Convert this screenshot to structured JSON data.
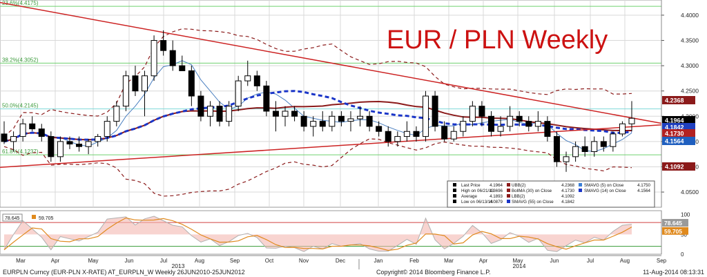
{
  "chart_data": {
    "type": "candlestick",
    "title": "EUR / PLN Weekly",
    "price_axis": {
      "ylim": [
        4.02,
        4.43
      ],
      "ticks": [
        "4.4000",
        "4.3500",
        "4.3000",
        "4.2500",
        "4.2000",
        "4.1500",
        "4.1000",
        "4.0500"
      ]
    },
    "fib_levels": [
      {
        "label": "23.6%(4.4175)",
        "value": 4.4175
      },
      {
        "label": "38.2%(4.3052)",
        "value": 4.3052
      },
      {
        "label": "50.0%(4.2145)",
        "value": 4.2145
      },
      {
        "label": "61.8%(4.1237)",
        "value": 4.1237
      }
    ],
    "price_badges": [
      {
        "text": "4.2368",
        "value": 4.2368,
        "color": "#8b1a1a"
      },
      {
        "text": "4.1964",
        "value": 4.1964,
        "color": "#000000"
      },
      {
        "text": "4.1842",
        "value": 4.1842,
        "color": "#1f3fbf"
      },
      {
        "text": "4.1730",
        "value": 4.173,
        "color": "#b22222"
      },
      {
        "text": "4.1564",
        "value": 4.1564,
        "color": "#1f5fbf"
      },
      {
        "text": "4.1092",
        "value": 4.1092,
        "color": "#8b1a1a"
      }
    ],
    "x_axis": {
      "months": [
        "Mar",
        "Apr",
        "May",
        "Jun",
        "Jul",
        "Aug",
        "Sep",
        "Oct",
        "Nov",
        "Dec",
        "Jan",
        "Feb",
        "Mar",
        "Apr",
        "May",
        "Jun",
        "Jul",
        "Aug",
        "Sep"
      ],
      "years": [
        {
          "label": "2013",
          "after_month_index": 4
        },
        {
          "label": "2014",
          "after_month_index": 14
        }
      ]
    },
    "candles": [
      [
        4.165,
        4.19,
        4.145,
        4.15
      ],
      [
        4.15,
        4.17,
        4.13,
        4.16
      ],
      [
        4.16,
        4.195,
        4.15,
        4.185
      ],
      [
        4.185,
        4.2,
        4.17,
        4.175
      ],
      [
        4.175,
        4.185,
        4.15,
        4.16
      ],
      [
        4.16,
        4.17,
        4.11,
        4.12
      ],
      [
        4.12,
        4.16,
        4.11,
        4.15
      ],
      [
        4.15,
        4.16,
        4.135,
        4.145
      ],
      [
        4.145,
        4.16,
        4.13,
        4.14
      ],
      [
        4.14,
        4.155,
        4.125,
        4.15
      ],
      [
        4.15,
        4.165,
        4.14,
        4.16
      ],
      [
        4.16,
        4.2,
        4.15,
        4.19
      ],
      [
        4.19,
        4.23,
        4.18,
        4.22
      ],
      [
        4.22,
        4.29,
        4.21,
        4.28
      ],
      [
        4.28,
        4.3,
        4.24,
        4.25
      ],
      [
        4.25,
        4.29,
        4.2,
        4.28
      ],
      [
        4.28,
        4.36,
        4.27,
        4.35
      ],
      [
        4.35,
        4.37,
        4.32,
        4.33
      ],
      [
        4.33,
        4.35,
        4.29,
        4.3
      ],
      [
        4.3,
        4.32,
        4.29,
        4.29
      ],
      [
        4.29,
        4.3,
        4.22,
        4.24
      ],
      [
        4.24,
        4.25,
        4.19,
        4.2
      ],
      [
        4.2,
        4.23,
        4.18,
        4.22
      ],
      [
        4.22,
        4.23,
        4.18,
        4.19
      ],
      [
        4.19,
        4.23,
        4.18,
        4.22
      ],
      [
        4.22,
        4.28,
        4.21,
        4.27
      ],
      [
        4.27,
        4.31,
        4.26,
        4.28
      ],
      [
        4.28,
        4.29,
        4.25,
        4.26
      ],
      [
        4.26,
        4.27,
        4.2,
        4.21
      ],
      [
        4.21,
        4.23,
        4.17,
        4.2
      ],
      [
        4.2,
        4.22,
        4.18,
        4.21
      ],
      [
        4.21,
        4.22,
        4.19,
        4.2
      ],
      [
        4.2,
        4.21,
        4.17,
        4.18
      ],
      [
        4.18,
        4.2,
        4.16,
        4.19
      ],
      [
        4.19,
        4.21,
        4.17,
        4.18
      ],
      [
        4.18,
        4.21,
        4.17,
        4.2
      ],
      [
        4.2,
        4.21,
        4.18,
        4.19
      ],
      [
        4.19,
        4.21,
        4.17,
        4.195
      ],
      [
        4.195,
        4.22,
        4.18,
        4.2
      ],
      [
        4.2,
        4.21,
        4.17,
        4.18
      ],
      [
        4.18,
        4.19,
        4.16,
        4.17
      ],
      [
        4.17,
        4.18,
        4.14,
        4.15
      ],
      [
        4.15,
        4.17,
        4.14,
        4.16
      ],
      [
        4.16,
        4.19,
        4.15,
        4.17
      ],
      [
        4.17,
        4.18,
        4.15,
        4.16
      ],
      [
        4.16,
        4.25,
        4.15,
        4.24
      ],
      [
        4.24,
        4.25,
        4.17,
        4.18
      ],
      [
        4.18,
        4.19,
        4.15,
        4.155
      ],
      [
        4.155,
        4.18,
        4.15,
        4.17
      ],
      [
        4.17,
        4.2,
        4.16,
        4.19
      ],
      [
        4.19,
        4.23,
        4.18,
        4.22
      ],
      [
        4.22,
        4.23,
        4.18,
        4.2
      ],
      [
        4.2,
        4.21,
        4.16,
        4.17
      ],
      [
        4.17,
        4.2,
        4.16,
        4.18
      ],
      [
        4.18,
        4.22,
        4.17,
        4.2
      ],
      [
        4.2,
        4.21,
        4.18,
        4.19
      ],
      [
        4.19,
        4.2,
        4.17,
        4.18
      ],
      [
        4.18,
        4.21,
        4.17,
        4.19
      ],
      [
        4.19,
        4.2,
        4.15,
        4.16
      ],
      [
        4.16,
        4.17,
        4.1,
        4.11
      ],
      [
        4.11,
        4.13,
        4.09,
        4.12
      ],
      [
        4.12,
        4.15,
        4.11,
        4.14
      ],
      [
        4.14,
        4.16,
        4.12,
        4.13
      ],
      [
        4.13,
        4.16,
        4.12,
        4.15
      ],
      [
        4.15,
        4.16,
        4.13,
        4.14
      ],
      [
        4.14,
        4.17,
        4.13,
        4.165
      ],
      [
        4.165,
        4.19,
        4.16,
        4.185
      ],
      [
        4.185,
        4.23,
        4.17,
        4.196
      ]
    ],
    "legend": {
      "rows": [
        {
          "left": "Last Price",
          "left_val": "4.1964",
          "mid": "UBB(2)",
          "mid_val": "4.2368",
          "right": "SMAVG (5) on Close",
          "right_val": "4.1750"
        },
        {
          "left": "High on 06/21/13",
          "left_val": "4.3696",
          "mid": "BollMA (30) on Close",
          "mid_val": "4.1730",
          "right": "SMAVG (14) on Close",
          "right_val": "4.1564"
        },
        {
          "left": "Average",
          "left_val": "4.1893",
          "mid": "LBB(2)",
          "mid_val": "4.1092",
          "right": "",
          "right_val": ""
        },
        {
          "left": "Low on 06/13/14",
          "left_val": "4.0879",
          "mid": "SMAVG (55) on Close",
          "mid_val": "4.1842",
          "right": "",
          "right_val": ""
        }
      ]
    },
    "oscillator": {
      "values": [
        "78.645",
        "59.705"
      ],
      "ticks": [
        "100",
        "50",
        "0"
      ],
      "badges": [
        "78.645",
        "59.705"
      ]
    }
  },
  "footer": {
    "left": "EURPLN Curncy (EUR-PLN X-RATE) AT_EURPLN_W  Weekly 26JUN2010-25JUN2012",
    "center": "Copyright© 2014 Bloomberg Finance L.P.",
    "right": "11-Aug-2014 08:13:31"
  },
  "colors": {
    "title": "#cc1111",
    "trendline": "#cc2222",
    "sma55": "#1a35c8",
    "bollma": "#8b1a1a",
    "band": "#8b1a1a",
    "sma14": "#4a7fc0",
    "fib": "#6fd06f",
    "fib_mid": "#7fd8d8"
  }
}
